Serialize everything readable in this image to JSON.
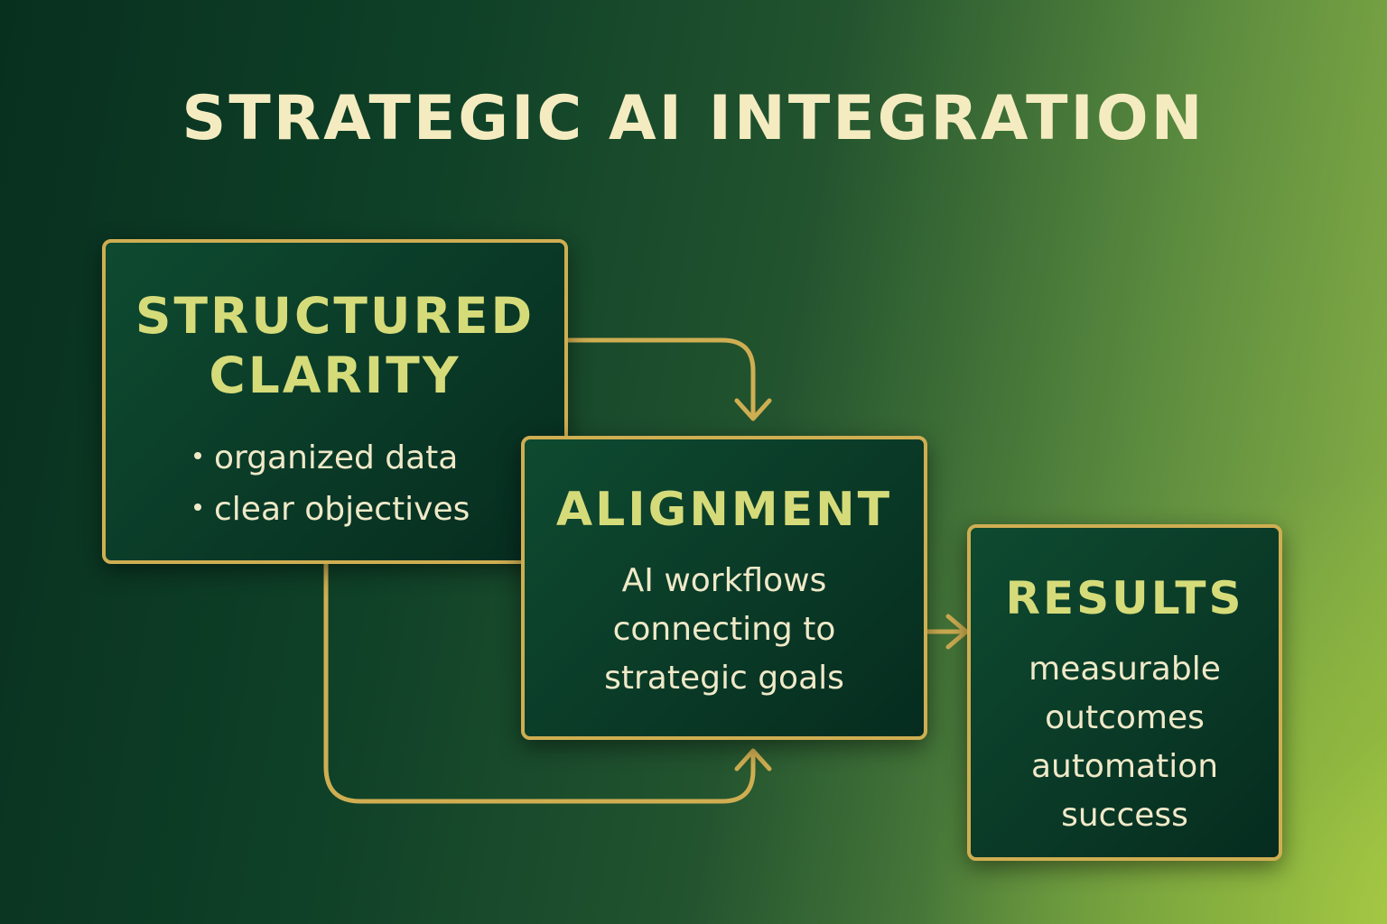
{
  "title": "STRATEGIC AI INTEGRATION",
  "colors": {
    "border": "#cfae52",
    "heading": "#d6db7a",
    "text": "#efe9c8",
    "title": "#f4ecc0"
  },
  "boxes": {
    "structured": {
      "title_line1": "STRUCTURED",
      "title_line2": "CLARITY",
      "bullets": [
        "organized data",
        "clear objectives"
      ]
    },
    "alignment": {
      "title": "ALIGNMENT",
      "lines": [
        "AI workflows",
        "connecting to",
        "strategic goals"
      ]
    },
    "results": {
      "title": "RESULTS",
      "lines": [
        "measurable",
        "outcomes",
        "automation",
        "success"
      ]
    }
  },
  "connectors": [
    {
      "from": "structured",
      "to": "alignment",
      "side": "top"
    },
    {
      "from": "structured",
      "to": "alignment",
      "side": "bottom"
    },
    {
      "from": "alignment",
      "to": "results"
    }
  ]
}
